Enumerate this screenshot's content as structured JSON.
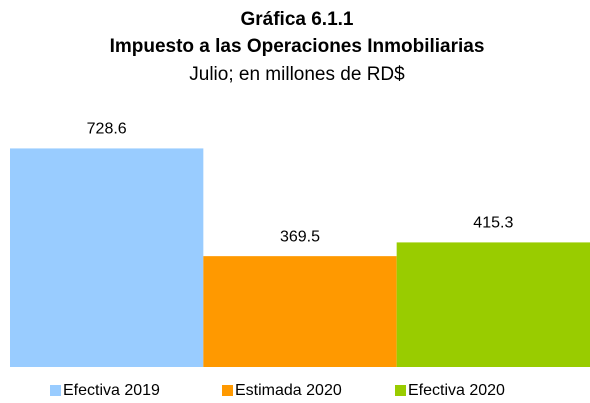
{
  "chart_data": {
    "type": "bar",
    "title": "Gráfica 6.1.1",
    "subtitle": "Impuesto a las Operaciones Inmobiliarias",
    "subtitle2": "Julio; en millones de RD$",
    "series": [
      {
        "name": "Efectiva 2019",
        "color": "#99ccff",
        "values": [
          728.6
        ]
      },
      {
        "name": "Estimada 2020",
        "color": "#ff9900",
        "values": [
          369.5
        ]
      },
      {
        "name": "Efectiva 2020",
        "color": "#99cc00",
        "values": [
          415.3
        ]
      }
    ],
    "ylim": [
      0,
      800
    ],
    "legend": "bottom"
  }
}
